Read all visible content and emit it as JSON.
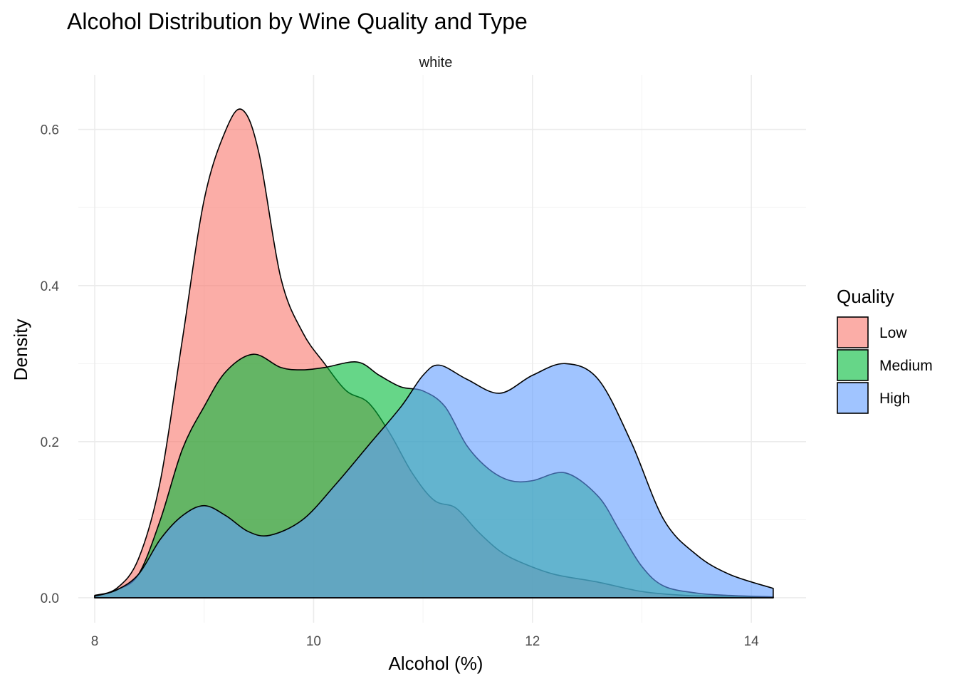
{
  "chart_data": {
    "type": "area",
    "title": "Alcohol Distribution by Wine Quality and Type",
    "facet": "white",
    "xlabel": "Alcohol (%)",
    "ylabel": "Density",
    "xlim": [
      7.85,
      14.5
    ],
    "ylim": [
      -0.032,
      0.67
    ],
    "x_ticks": [
      8,
      10,
      12,
      14
    ],
    "y_ticks": [
      0.0,
      0.2,
      0.4,
      0.6
    ],
    "x_tick_labels": [
      "8",
      "10",
      "12",
      "14"
    ],
    "y_tick_labels": [
      "0.0",
      "0.2",
      "0.4",
      "0.6"
    ],
    "grid": true,
    "legend": {
      "title": "Quality",
      "position": "right",
      "entries": [
        "Low",
        "Medium",
        "High"
      ]
    },
    "series": [
      {
        "name": "Low",
        "color": "#F8766D",
        "x": [
          8.0,
          8.2,
          8.4,
          8.6,
          8.8,
          9.0,
          9.2,
          9.35,
          9.5,
          9.7,
          9.9,
          10.1,
          10.3,
          10.5,
          10.7,
          10.9,
          11.1,
          11.3,
          11.5,
          11.7,
          11.9,
          12.2,
          12.6,
          13.0,
          13.4,
          13.8,
          14.2
        ],
        "y": [
          0.003,
          0.012,
          0.05,
          0.15,
          0.33,
          0.51,
          0.6,
          0.625,
          0.57,
          0.41,
          0.34,
          0.3,
          0.265,
          0.25,
          0.21,
          0.16,
          0.125,
          0.115,
          0.085,
          0.06,
          0.045,
          0.03,
          0.02,
          0.008,
          0.003,
          0.002,
          0.001
        ]
      },
      {
        "name": "Medium",
        "color": "#00BA38",
        "x": [
          8.0,
          8.2,
          8.4,
          8.6,
          8.8,
          9.0,
          9.2,
          9.45,
          9.7,
          9.9,
          10.1,
          10.4,
          10.6,
          10.8,
          11.0,
          11.2,
          11.4,
          11.6,
          11.8,
          12.0,
          12.3,
          12.6,
          12.8,
          13.0,
          13.2,
          13.5,
          13.8,
          14.2
        ],
        "y": [
          0.002,
          0.01,
          0.03,
          0.1,
          0.19,
          0.245,
          0.29,
          0.312,
          0.295,
          0.292,
          0.295,
          0.302,
          0.285,
          0.27,
          0.265,
          0.245,
          0.195,
          0.165,
          0.15,
          0.15,
          0.16,
          0.13,
          0.085,
          0.04,
          0.015,
          0.006,
          0.003,
          0.001
        ]
      },
      {
        "name": "High",
        "color": "#619CFF",
        "x": [
          8.0,
          8.2,
          8.4,
          8.6,
          8.8,
          9.0,
          9.2,
          9.4,
          9.6,
          9.9,
          10.2,
          10.5,
          10.8,
          11.0,
          11.15,
          11.4,
          11.7,
          12.0,
          12.3,
          12.6,
          12.9,
          13.2,
          13.5,
          13.8,
          14.2
        ],
        "y": [
          0.002,
          0.01,
          0.03,
          0.075,
          0.105,
          0.118,
          0.105,
          0.085,
          0.08,
          0.1,
          0.145,
          0.195,
          0.245,
          0.285,
          0.298,
          0.28,
          0.262,
          0.285,
          0.3,
          0.28,
          0.2,
          0.1,
          0.055,
          0.03,
          0.012
        ]
      }
    ]
  }
}
